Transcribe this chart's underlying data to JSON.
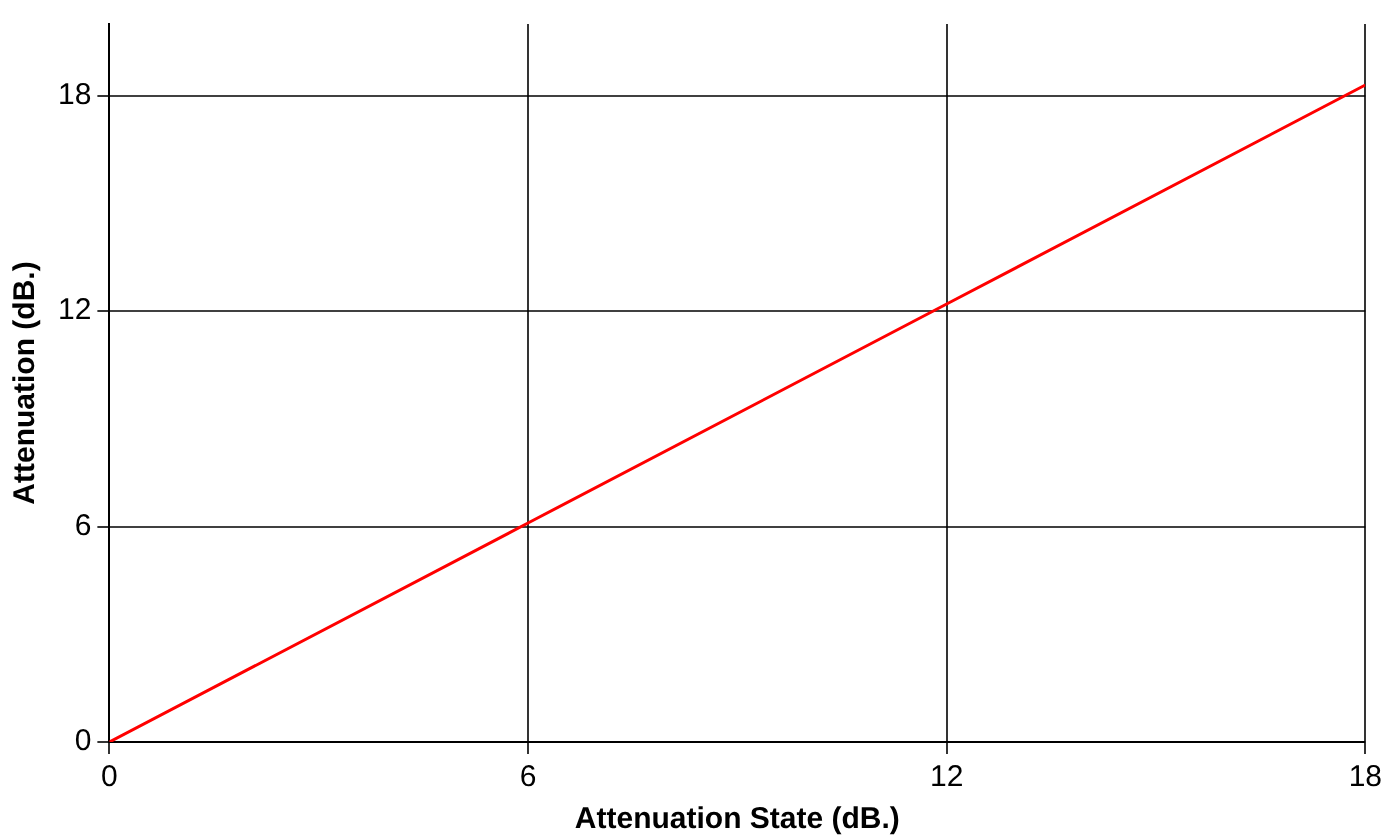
{
  "chart_data": {
    "type": "line",
    "xlabel": "Attenuation State (dB.)",
    "ylabel": "Attenuation (dB.)",
    "x": [
      0,
      6,
      12,
      18
    ],
    "series": [
      {
        "color": "#ff0000",
        "values": [
          0,
          6.1,
          12.2,
          18.3
        ]
      }
    ],
    "xlim": [
      0,
      18
    ],
    "xticks": [
      0,
      6,
      12,
      18
    ],
    "ylim": [
      0,
      20
    ],
    "yticks": [
      0,
      6,
      12,
      18
    ],
    "grid": true,
    "legend": false,
    "marker": "none",
    "line_style": "solid"
  }
}
